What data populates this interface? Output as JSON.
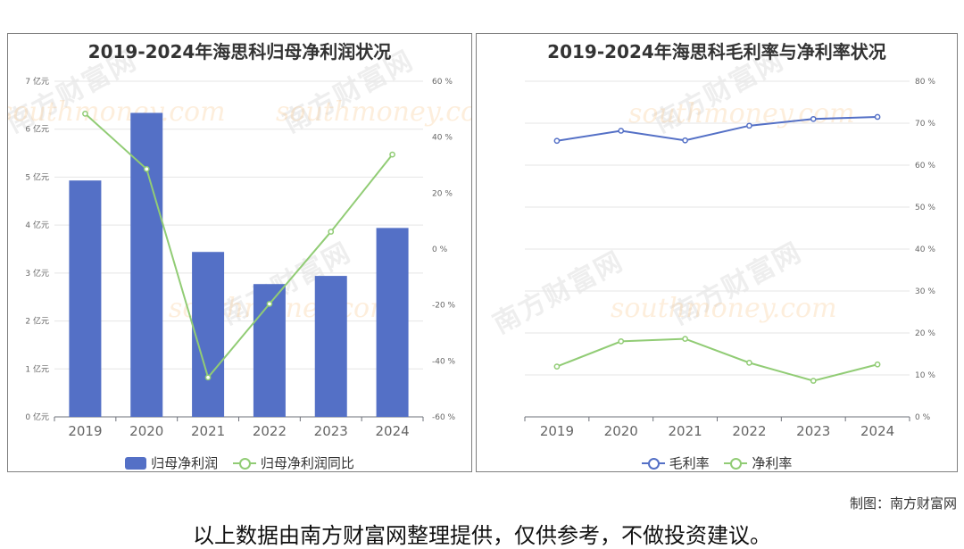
{
  "colors": {
    "bar": "#5470c6",
    "line_green": "#91cc75",
    "line_blue": "#5470c6",
    "grid": "#e5e5e5",
    "axis_text": "#666666"
  },
  "watermark": {
    "cn": "南方财富网",
    "en": "southmoney.com"
  },
  "chart_data": [
    {
      "type": "bar",
      "title": "2019-2024年海思科归母净利润状况",
      "categories": [
        "2019",
        "2020",
        "2021",
        "2022",
        "2023",
        "2024"
      ],
      "y_left": {
        "ticks": [
          "0 亿元",
          "1 亿元",
          "2 亿元",
          "3 亿元",
          "4 亿元",
          "5 亿元",
          "6 亿元",
          "7 亿元"
        ],
        "range": [
          0,
          7
        ],
        "unit": "亿元"
      },
      "y_right": {
        "ticks": [
          "-60 %",
          "-40 %",
          "-20 %",
          "0 %",
          "20 %",
          "40 %",
          "60 %"
        ],
        "range": [
          -60,
          60
        ],
        "unit": "%"
      },
      "series": [
        {
          "name": "归母净利润",
          "kind": "bar",
          "axis": "left",
          "values": [
            4.93,
            6.34,
            3.44,
            2.77,
            2.94,
            3.94
          ]
        },
        {
          "name": "归母净利润同比",
          "kind": "line",
          "axis": "right",
          "values": [
            48.4,
            28.6,
            -45.9,
            -19.6,
            6.2,
            33.8
          ]
        }
      ],
      "legend": "bottom"
    },
    {
      "type": "line",
      "title": "2019-2024年海思科毛利率与净利率状况",
      "categories": [
        "2019",
        "2020",
        "2021",
        "2022",
        "2023",
        "2024"
      ],
      "y_right": {
        "ticks": [
          "0 %",
          "10 %",
          "20 %",
          "30 %",
          "40 %",
          "50 %",
          "60 %",
          "70 %",
          "80 %"
        ],
        "range": [
          0,
          80
        ],
        "unit": "%"
      },
      "series": [
        {
          "name": "毛利率",
          "color": "#5470c6",
          "values": [
            65.8,
            68.2,
            65.9,
            69.4,
            71.0,
            71.5
          ]
        },
        {
          "name": "净利率",
          "color": "#91cc75",
          "values": [
            12.0,
            18.0,
            18.6,
            12.9,
            8.6,
            12.5
          ]
        }
      ],
      "legend": "bottom"
    }
  ],
  "footer": {
    "credit": "制图：南方财富网",
    "disclaimer": "以上数据由南方财富网整理提供，仅供参考，不做投资建议。"
  }
}
